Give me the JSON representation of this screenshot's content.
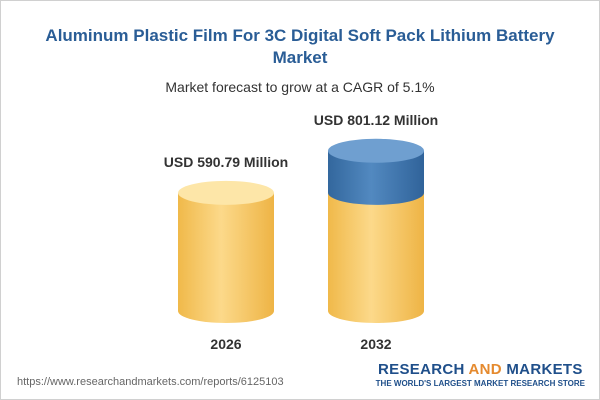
{
  "chart_data": {
    "type": "cylinder",
    "title": "Aluminum Plastic Film For 3C Digital Soft Pack Lithium Battery Market",
    "subtitle": "Market forecast to grow at a CAGR of 5.1%",
    "categories": [
      "2026",
      "2032"
    ],
    "values": [
      590.79,
      801.12
    ],
    "value_labels": [
      "USD 590.79 Million",
      "USD 801.12 Million"
    ],
    "colors": {
      "base": "#f4c35a",
      "growth": "#3f76ad"
    }
  },
  "footer": {
    "url": "https://www.researchandmarkets.com/reports/6125103",
    "logo": {
      "name_parts": [
        "RESEARCH",
        "AND",
        "MARKETS"
      ],
      "tagline": "THE WORLD'S LARGEST MARKET RESEARCH STORE"
    }
  }
}
